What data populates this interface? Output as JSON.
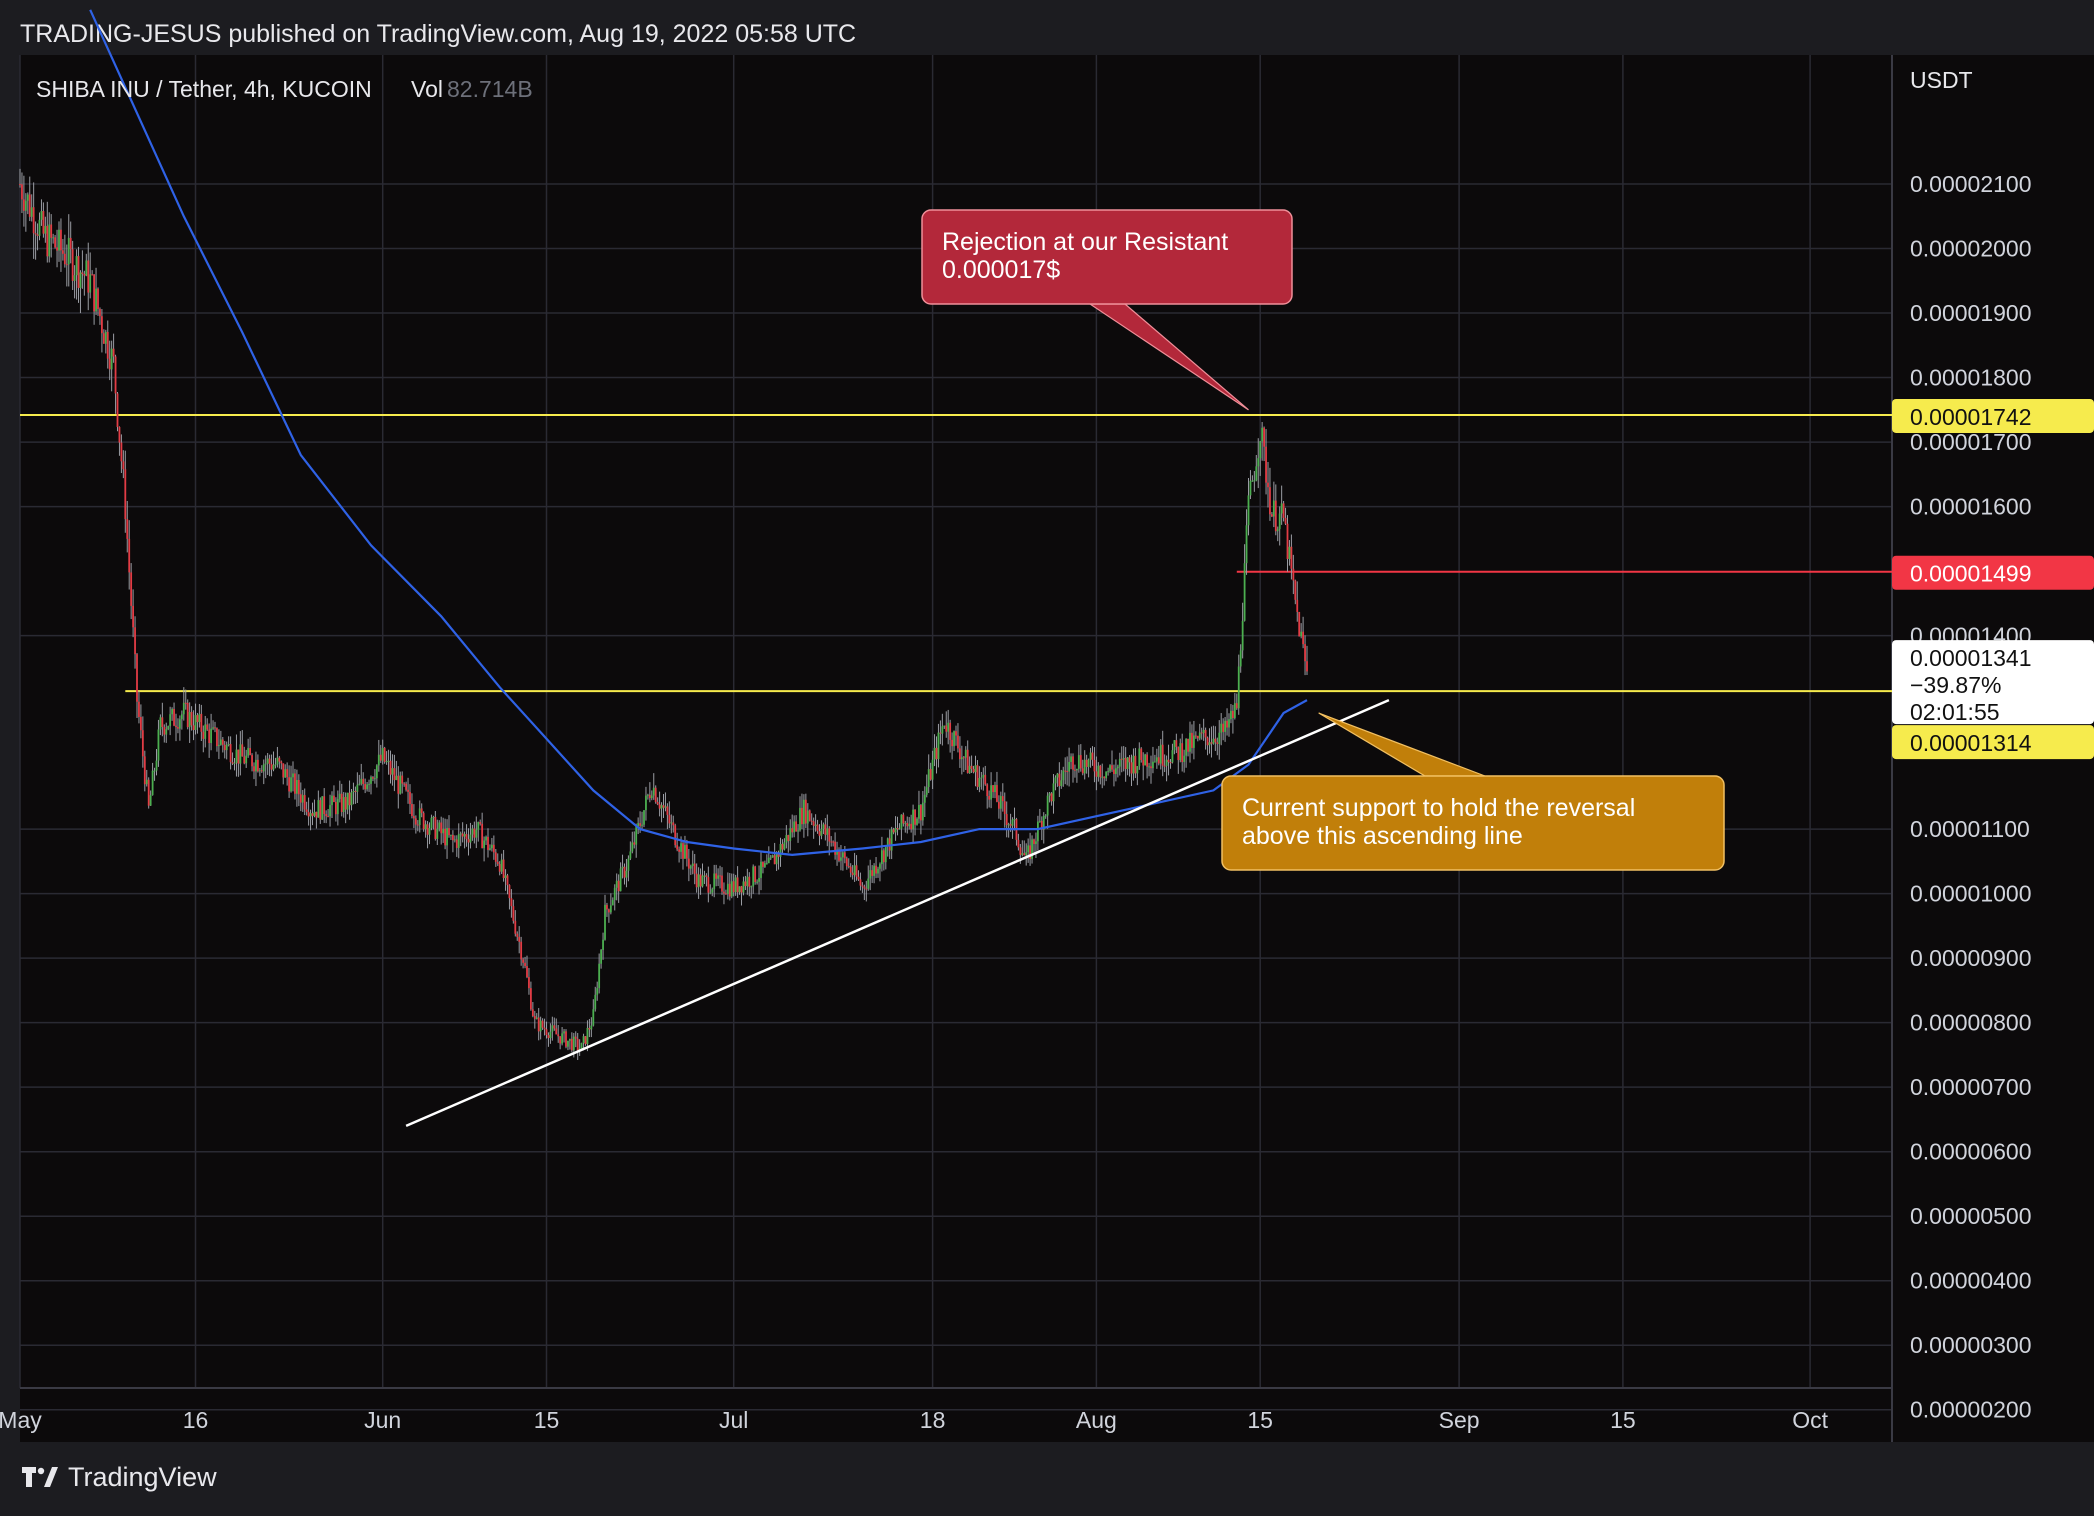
{
  "header": {
    "published_text": "TRADING-JESUS published on TradingView.com, Aug 19, 2022 05:58 UTC"
  },
  "footer": {
    "brand": "TradingView"
  },
  "colors": {
    "background": "#0c0a0b",
    "grid": "#2a2a33",
    "up": "#4caf50",
    "down": "#e33c45",
    "wick": "#9a9ca3",
    "ma": "#2f62e6",
    "resistance_line": "#f6eb4d",
    "trend_line": "#ffffff",
    "price_line": "#f23645",
    "red_callout": "#b3283a",
    "orange_callout": "#c17f0a"
  },
  "chart_data": {
    "type": "candlestick",
    "symbol_label": "SHIBA INU / Tether, 4h, KUCOIN",
    "vol_label": "Vol",
    "vol_value": "82.714B",
    "y_unit": "USDT",
    "ylim": [
      1.5e-06,
      2.3e-05
    ],
    "y_ticks": [
      "0.00002100",
      "0.00002000",
      "0.00001900",
      "0.00001800",
      "0.00001700",
      "0.00001600",
      "0.00001400",
      "0.00001100",
      "0.00001000",
      "0.00000900",
      "0.00000800",
      "0.00000700",
      "0.00000600",
      "0.00000500",
      "0.00000400",
      "0.00000300",
      "0.00000200"
    ],
    "y_tick_values": [
      2.1e-05,
      2e-05,
      1.9e-05,
      1.8e-05,
      1.7e-05,
      1.6e-05,
      1.4e-05,
      1.1e-05,
      1e-05,
      9e-06,
      8e-06,
      7e-06,
      6e-06,
      5e-06,
      4e-06,
      3e-06,
      2e-06
    ],
    "x_ticks": [
      "May",
      "16",
      "Jun",
      "15",
      "Jul",
      "18",
      "Aug",
      "15",
      "Sep",
      "15",
      "Oct"
    ],
    "x_tick_dates": [
      "2022-05-01",
      "2022-05-16",
      "2022-06-01",
      "2022-06-15",
      "2022-07-01",
      "2022-07-18",
      "2022-08-01",
      "2022-08-15",
      "2022-09-01",
      "2022-09-15",
      "2022-10-01"
    ],
    "x_start": "2022-05-01",
    "x_end": "2022-10-08",
    "price_series": [
      [
        "2022-05-01",
        2.1e-05
      ],
      [
        "2022-05-03",
        2.02e-05
      ],
      [
        "2022-05-05",
        1.99e-05
      ],
      [
        "2022-05-07",
        1.95e-05
      ],
      [
        "2022-05-09",
        1.82e-05
      ],
      [
        "2022-05-10",
        1.6e-05
      ],
      [
        "2022-05-11",
        1.3e-05
      ],
      [
        "2022-05-12",
        1.13e-05
      ],
      [
        "2022-05-13",
        1.26e-05
      ],
      [
        "2022-05-15",
        1.28e-05
      ],
      [
        "2022-05-17",
        1.25e-05
      ],
      [
        "2022-05-20",
        1.21e-05
      ],
      [
        "2022-05-23",
        1.2e-05
      ],
      [
        "2022-05-26",
        1.13e-05
      ],
      [
        "2022-05-29",
        1.14e-05
      ],
      [
        "2022-06-01",
        1.21e-05
      ],
      [
        "2022-06-04",
        1.12e-05
      ],
      [
        "2022-06-07",
        1.08e-05
      ],
      [
        "2022-06-09",
        1.1e-05
      ],
      [
        "2022-06-11",
        1.05e-05
      ],
      [
        "2022-06-13",
        9e-06
      ],
      [
        "2022-06-14",
        8e-06
      ],
      [
        "2022-06-16",
        7.8e-06
      ],
      [
        "2022-06-18",
        7.6e-06
      ],
      [
        "2022-06-19",
        8.1e-06
      ],
      [
        "2022-06-20",
        9.7e-06
      ],
      [
        "2022-06-22",
        1.05e-05
      ],
      [
        "2022-06-24",
        1.17e-05
      ],
      [
        "2022-06-26",
        1.09e-05
      ],
      [
        "2022-06-28",
        1.02e-05
      ],
      [
        "2022-07-01",
        1.01e-05
      ],
      [
        "2022-07-04",
        1.04e-05
      ],
      [
        "2022-07-07",
        1.13e-05
      ],
      [
        "2022-07-09",
        1.09e-05
      ],
      [
        "2022-07-12",
        1.01e-05
      ],
      [
        "2022-07-15",
        1.1e-05
      ],
      [
        "2022-07-17",
        1.13e-05
      ],
      [
        "2022-07-19",
        1.27e-05
      ],
      [
        "2022-07-21",
        1.2e-05
      ],
      [
        "2022-07-23",
        1.16e-05
      ],
      [
        "2022-07-25",
        1.1e-05
      ],
      [
        "2022-07-26",
        1.05e-05
      ],
      [
        "2022-07-28",
        1.15e-05
      ],
      [
        "2022-07-30",
        1.21e-05
      ],
      [
        "2022-08-02",
        1.19e-05
      ],
      [
        "2022-08-05",
        1.21e-05
      ],
      [
        "2022-08-08",
        1.22e-05
      ],
      [
        "2022-08-10",
        1.24e-05
      ],
      [
        "2022-08-12",
        1.25e-05
      ],
      [
        "2022-08-13",
        1.29e-05
      ],
      [
        "2022-08-14",
        1.6e-05
      ],
      [
        "2022-08-15",
        1.72e-05
      ],
      [
        "2022-08-16",
        1.59e-05
      ],
      [
        "2022-08-17",
        1.58e-05
      ],
      [
        "2022-08-18",
        1.45e-05
      ],
      [
        "2022-08-19",
        1.34e-05
      ]
    ],
    "ma_series": [
      [
        "2022-05-07",
        2.37e-05
      ],
      [
        "2022-05-10",
        2.25e-05
      ],
      [
        "2022-05-15",
        2.05e-05
      ],
      [
        "2022-05-20",
        1.87e-05
      ],
      [
        "2022-05-25",
        1.68e-05
      ],
      [
        "2022-05-31",
        1.54e-05
      ],
      [
        "2022-06-06",
        1.43e-05
      ],
      [
        "2022-06-11",
        1.32e-05
      ],
      [
        "2022-06-15",
        1.24e-05
      ],
      [
        "2022-06-19",
        1.16e-05
      ],
      [
        "2022-06-23",
        1.1e-05
      ],
      [
        "2022-06-27",
        1.08e-05
      ],
      [
        "2022-07-01",
        1.07e-05
      ],
      [
        "2022-07-06",
        1.06e-05
      ],
      [
        "2022-07-12",
        1.07e-05
      ],
      [
        "2022-07-17",
        1.08e-05
      ],
      [
        "2022-07-22",
        1.1e-05
      ],
      [
        "2022-07-27",
        1.1e-05
      ],
      [
        "2022-08-01",
        1.12e-05
      ],
      [
        "2022-08-06",
        1.14e-05
      ],
      [
        "2022-08-11",
        1.16e-05
      ],
      [
        "2022-08-14",
        1.2e-05
      ],
      [
        "2022-08-17",
        1.28e-05
      ],
      [
        "2022-08-19",
        1.3e-05
      ]
    ],
    "horizontal_levels": [
      {
        "value": 1.742e-05,
        "label": "0.00001742",
        "x_start": "2022-05-01"
      },
      {
        "value": 1.314e-05,
        "label": "0.00001314",
        "x_start": "2022-05-10"
      },
      {
        "value": 1.499e-05,
        "label": "0.00001499",
        "x_start": "2022-08-13"
      }
    ],
    "trend_line": {
      "start": [
        "2022-06-03",
        6.4e-06
      ],
      "end": [
        "2022-08-26",
        1.3e-05
      ]
    },
    "last_price": {
      "value": "0.00001341",
      "change": "−39.87%",
      "countdown": "02:01:55"
    },
    "annotations": [
      {
        "id": "rejection",
        "lines": [
          "Rejection at our Resistant",
          "0.000017$"
        ],
        "target": [
          "2022-08-14",
          1.75e-05
        ]
      },
      {
        "id": "support",
        "lines": [
          "Current support to hold the reversal",
          "above this ascending line"
        ],
        "target": [
          "2022-08-20",
          1.28e-05
        ]
      }
    ]
  }
}
